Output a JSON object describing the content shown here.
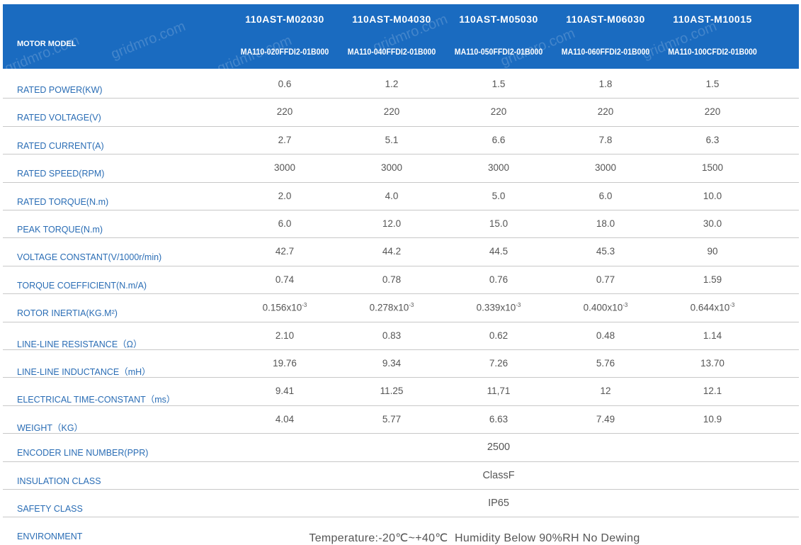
{
  "header": {
    "label": "MOTOR MODEL",
    "watermark": "gridmro.com",
    "models": [
      {
        "name": "110AST-M02030",
        "code": "MA110-020FFDI2-01B000"
      },
      {
        "name": "110AST-M04030",
        "code": "MA110-040FFDI2-01B000"
      },
      {
        "name": "110AST-M05030",
        "code": "MA110-050FFDI2-01B000"
      },
      {
        "name": "110AST-M06030",
        "code": "MA110-060FFDI2-01B000"
      },
      {
        "name": "110AST-M10015",
        "code": "MA110-100CFDI2-01B000"
      }
    ]
  },
  "rows": [
    {
      "label": "RATED POWER(KW)",
      "values": [
        "0.6",
        "1.2",
        "1.5",
        "1.8",
        "1.5"
      ]
    },
    {
      "label": "RATED VOLTAGE(V)",
      "values": [
        "220",
        "220",
        "220",
        "220",
        "220"
      ]
    },
    {
      "label": "RATED CURRENT(A)",
      "values": [
        "2.7",
        "5.1",
        "6.6",
        "7.8",
        "6.3"
      ]
    },
    {
      "label": "RATED SPEED(RPM)",
      "values": [
        "3000",
        "3000",
        "3000",
        "3000",
        "1500"
      ]
    },
    {
      "label": "RATED TORQUE(N.m)",
      "values": [
        "2.0",
        "4.0",
        "5.0",
        "6.0",
        "10.0"
      ]
    },
    {
      "label": "PEAK TORQUE(N.m)",
      "values": [
        "6.0",
        "12.0",
        "15.0",
        "18.0",
        "30.0"
      ]
    },
    {
      "label": "VOLTAGE CONSTANT(V/1000r/min)",
      "values": [
        "42.7",
        "44.2",
        "44.5",
        "45.3",
        "90"
      ]
    },
    {
      "label": "TORQUE COEFFICIENT(N.m/A)",
      "values": [
        "0.74",
        "0.78",
        "0.76",
        "0.77",
        "1.59"
      ]
    },
    {
      "label": "ROTOR INERTIA(KG.M²)",
      "values": [
        {
          "base": "0.156x10",
          "exp": "-3"
        },
        {
          "base": "0.278x10",
          "exp": "-3"
        },
        {
          "base": "0.339x10",
          "exp": "-3"
        },
        {
          "base": "0.400x10",
          "exp": "-3"
        },
        {
          "base": "0.644x10",
          "exp": "-3"
        }
      ]
    },
    {
      "label": "LINE-LINE RESISTANCE（Ω）",
      "values": [
        "2.10",
        "0.83",
        "0.62",
        "0.48",
        "1.14"
      ]
    },
    {
      "label": "LINE-LINE INDUCTANCE（mH）",
      "values": [
        "19.76",
        "9.34",
        "7.26",
        "5.76",
        "13.70"
      ]
    },
    {
      "label": "ELECTRICAL TIME-CONSTANT（ms）",
      "values": [
        "9.41",
        "11.25",
        "11,71",
        "12",
        "12.1"
      ]
    },
    {
      "label": "WEIGHT（KG）",
      "values": [
        "4.04",
        "5.77",
        "6.63",
        "7.49",
        "10.9"
      ]
    },
    {
      "label": "ENCODER LINE NUMBER(PPR)",
      "value": "2500"
    },
    {
      "label": "INSULATION CLASS",
      "value": "ClassF"
    },
    {
      "label": "SAFETY CLASS",
      "value": "IP65"
    },
    {
      "label": "ENVIRONMENT",
      "value": "Temperature:-20℃~+40℃  Humidity Below 90%RH No Dewing"
    }
  ]
}
